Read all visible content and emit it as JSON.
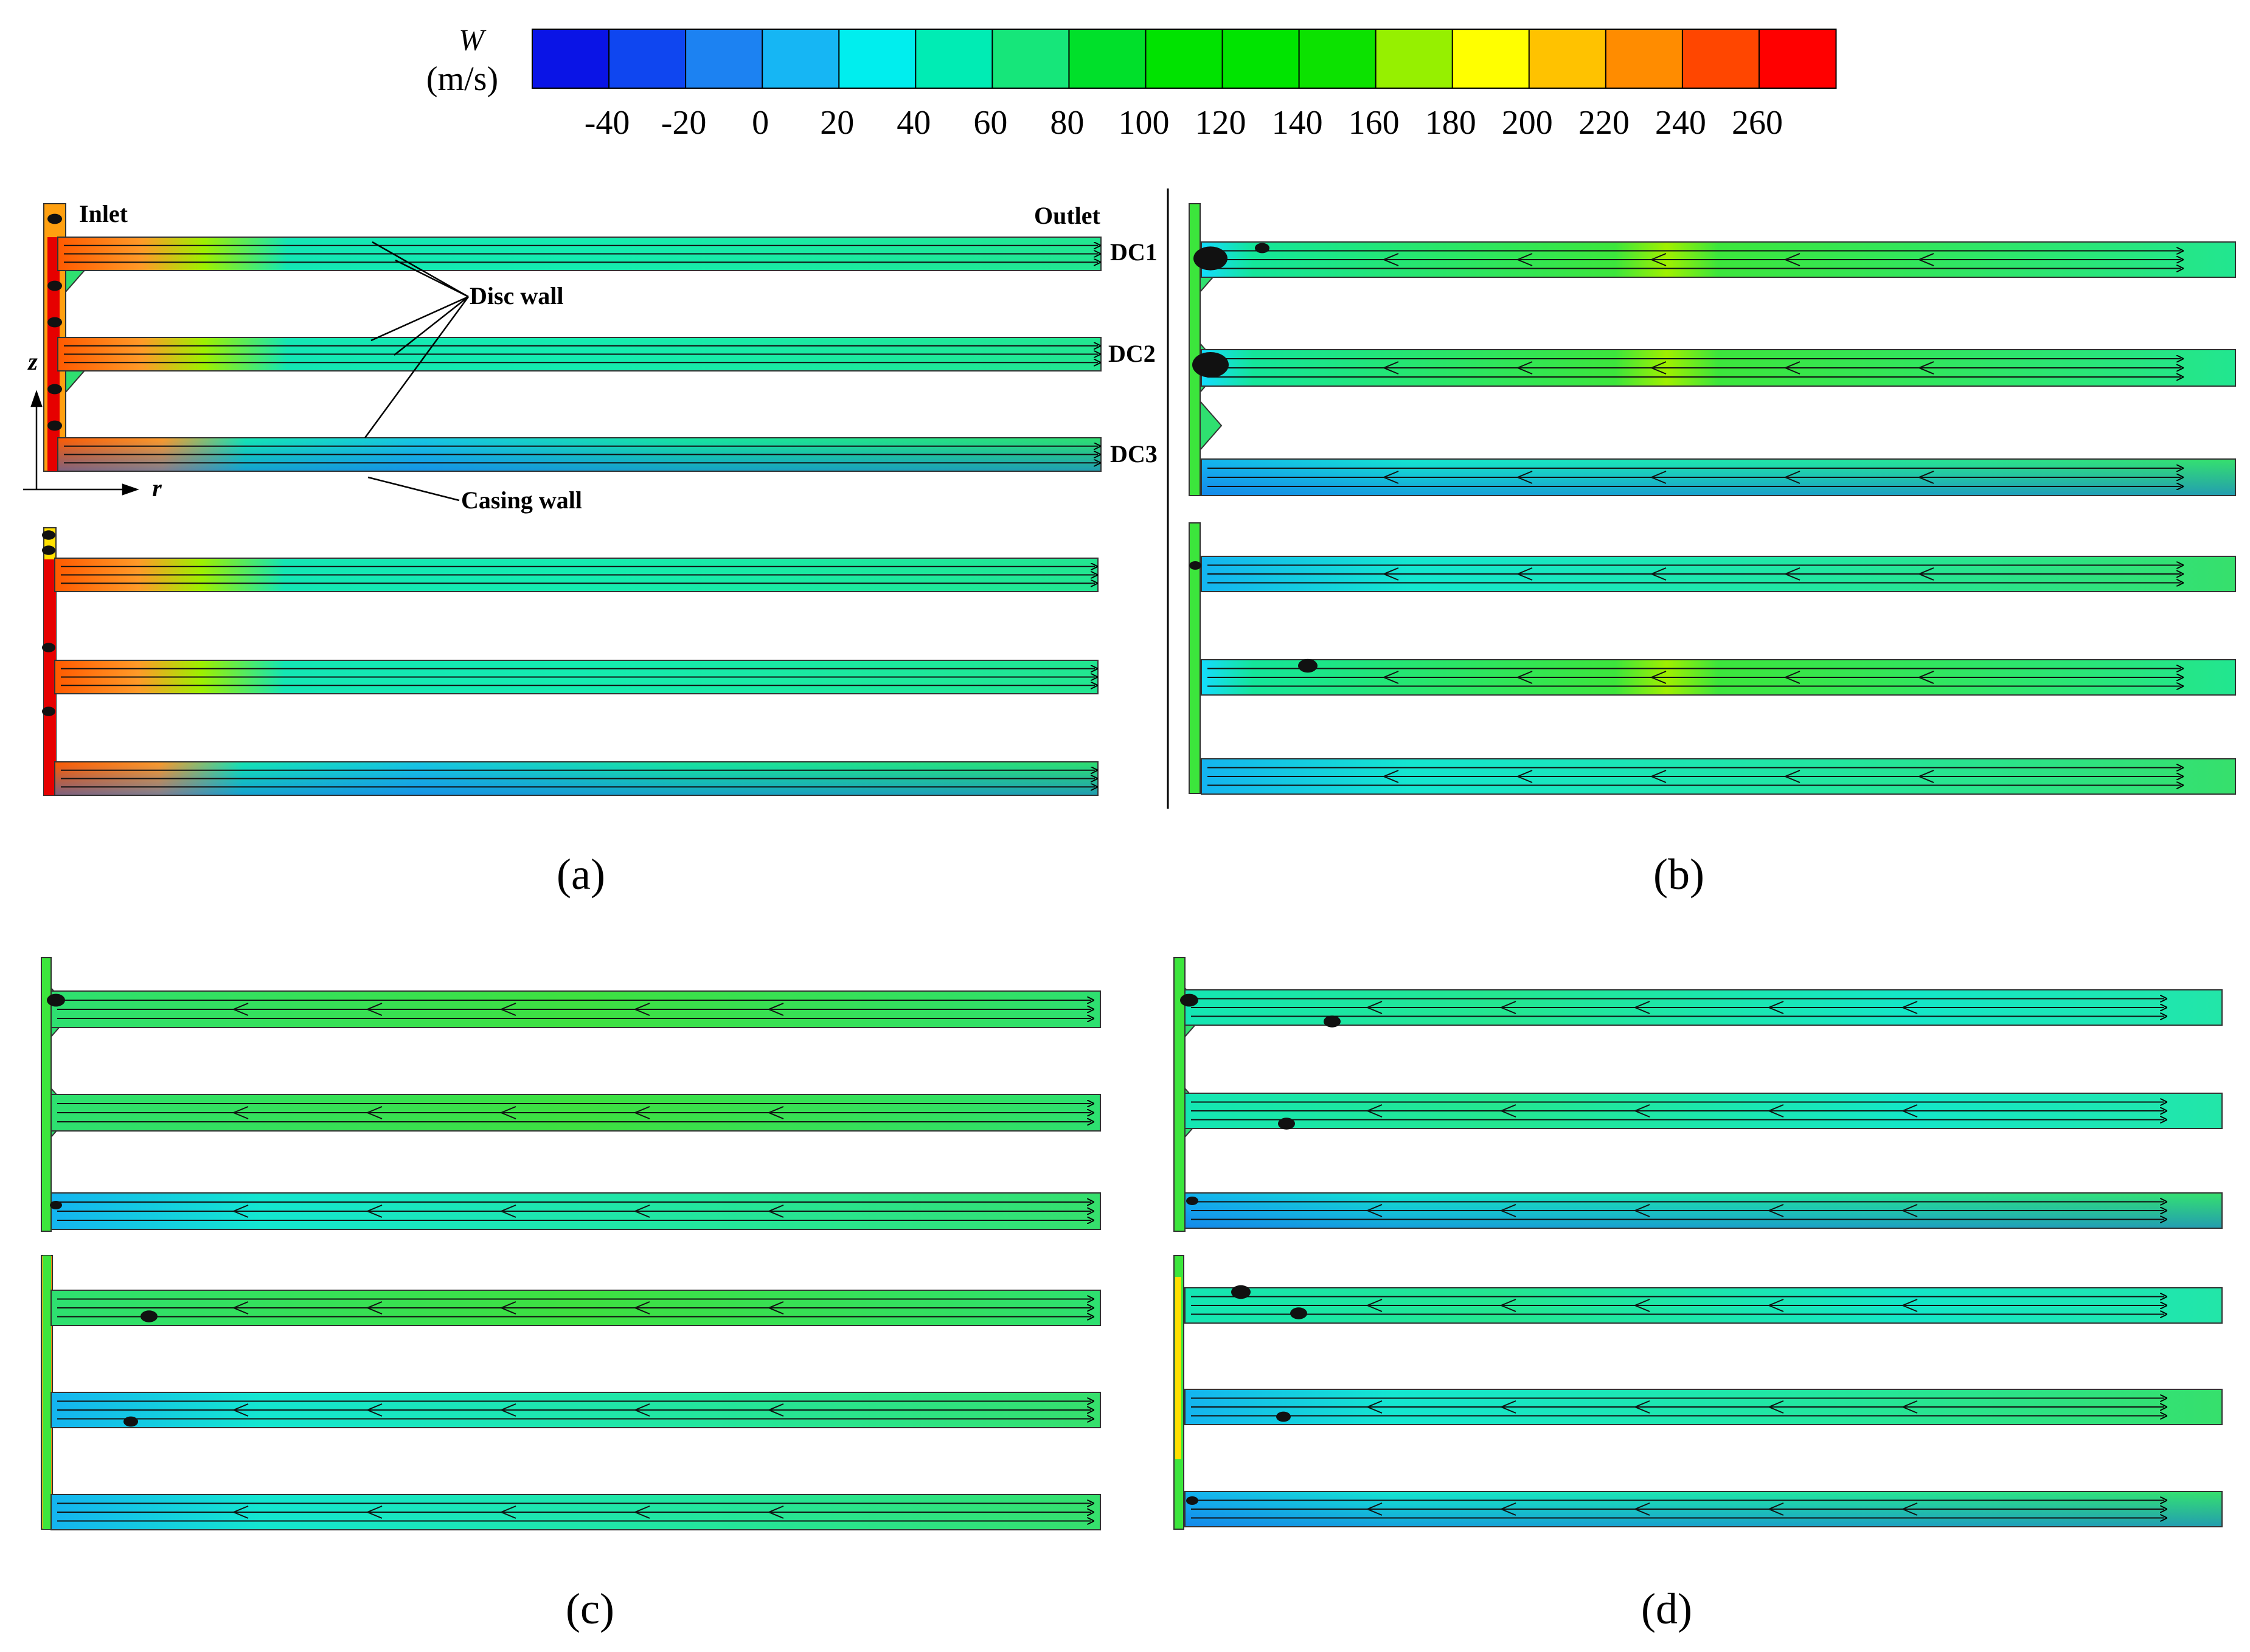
{
  "colorbar": {
    "variable": "W",
    "unit": "(m/s)",
    "tick_labels": [
      "-40",
      "-20",
      "0",
      "20",
      "40",
      "60",
      "80",
      "100",
      "120",
      "140",
      "160",
      "180",
      "200",
      "220",
      "240",
      "260"
    ],
    "colors": [
      "#0a14e6",
      "#0f46f0",
      "#1c82f2",
      "#16b6f4",
      "#00eeee",
      "#00ecb4",
      "#16e67a",
      "#00e02a",
      "#00e300",
      "#00e400",
      "#0ce200",
      "#96f000",
      "#ffff00",
      "#ffc200",
      "#ff8c00",
      "#ff4600",
      "#ff0000"
    ]
  },
  "annotations": {
    "inlet": "Inlet",
    "outlet": "Outlet",
    "disc_wall": "Disc wall",
    "casing_wall": "Casing wall",
    "dc1": "DC1",
    "dc2": "DC2",
    "dc3": "DC3",
    "axis_z": "z",
    "axis_r": "r"
  },
  "panels": [
    {
      "label": "(a)",
      "letter": "a"
    },
    {
      "label": "(b)",
      "letter": "b"
    },
    {
      "label": "(c)",
      "letter": "c"
    },
    {
      "label": "(d)",
      "letter": "d"
    }
  ]
}
